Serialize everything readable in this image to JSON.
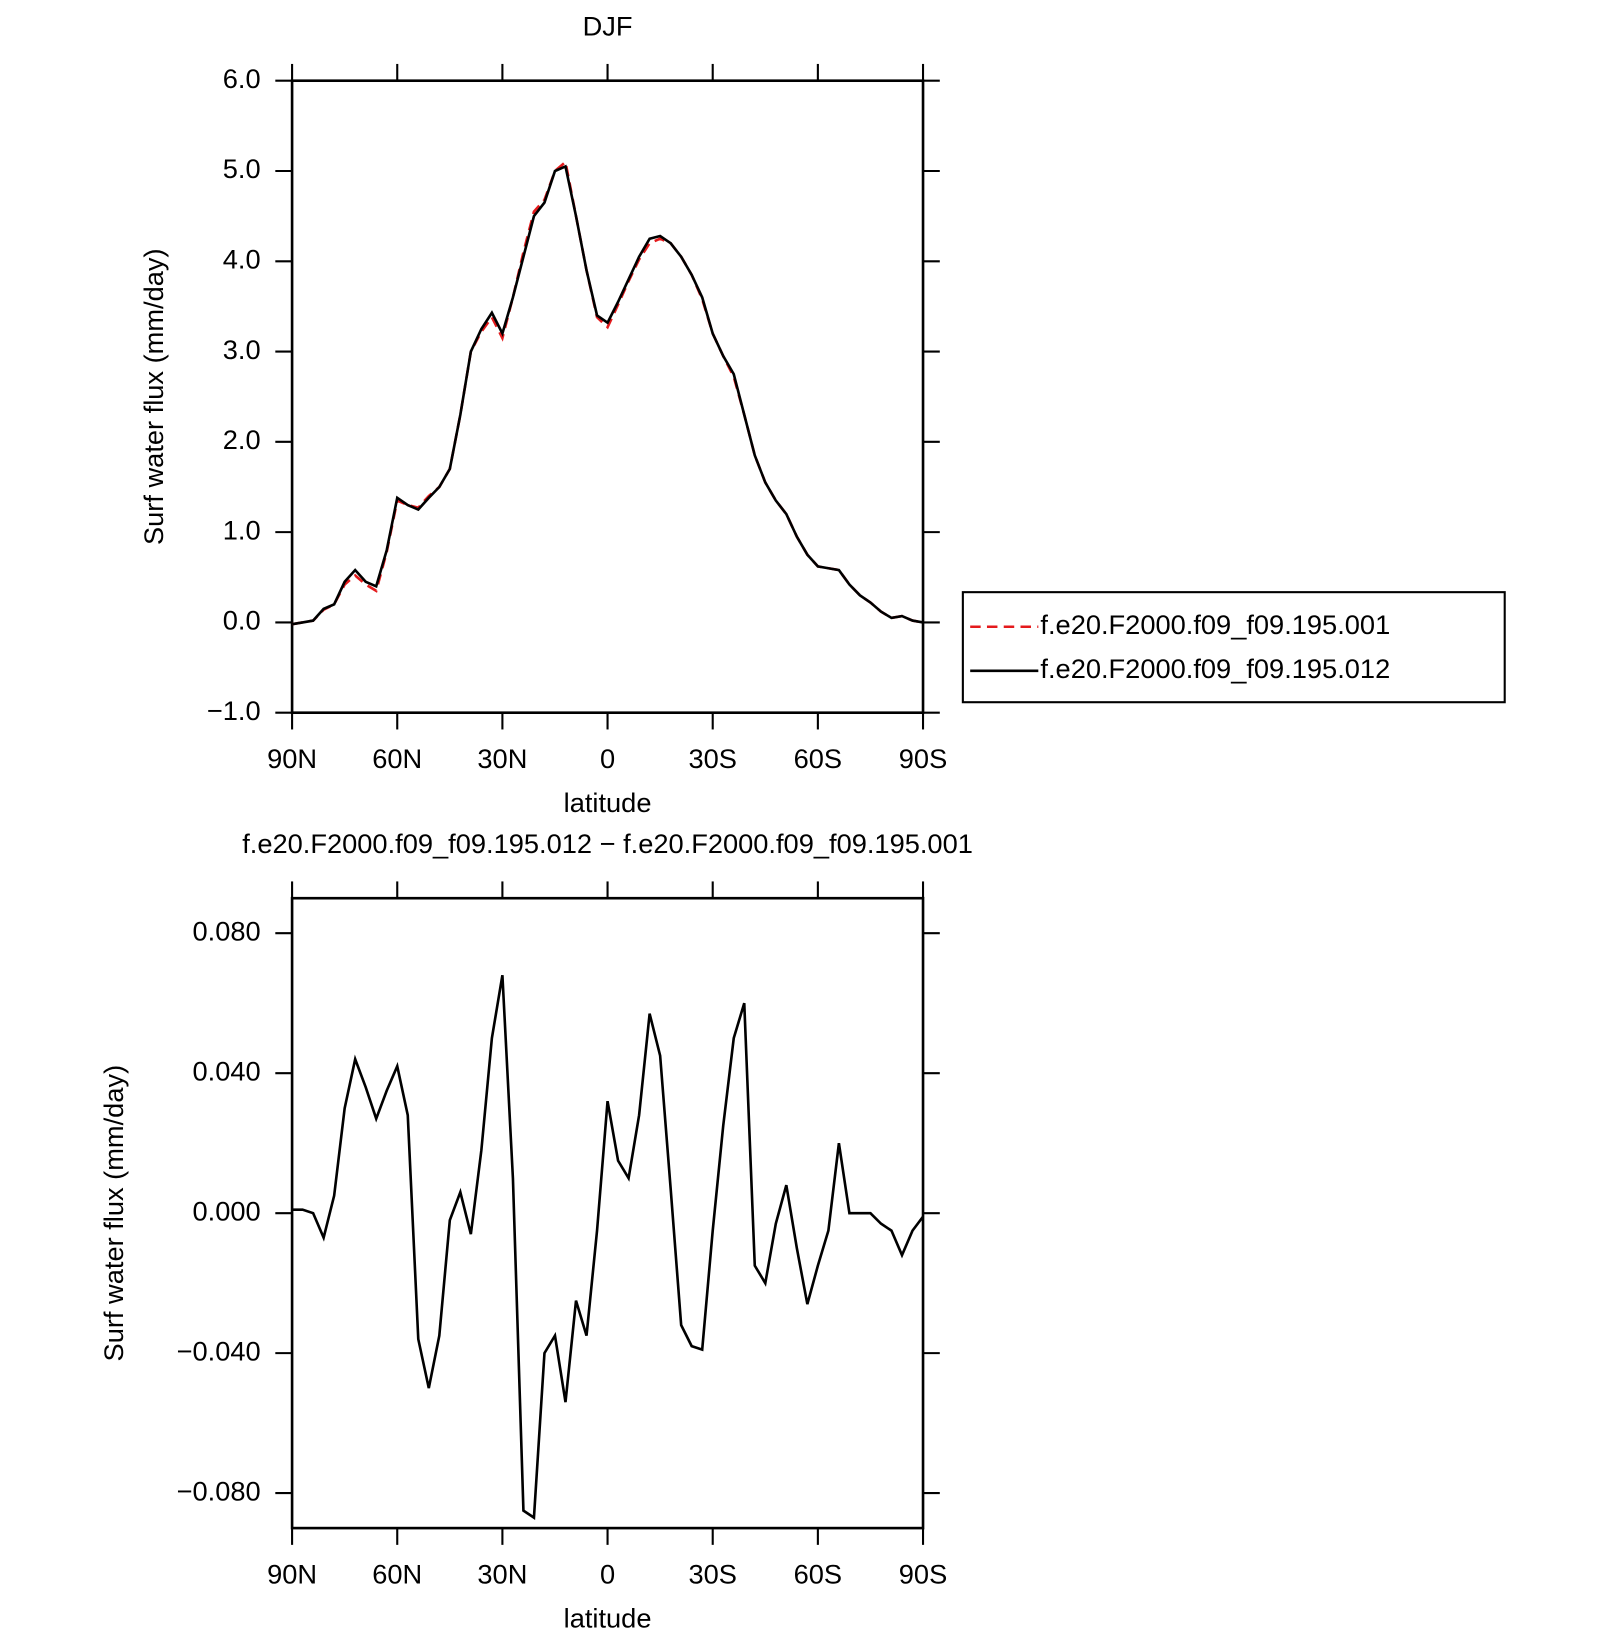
{
  "chart_data": [
    {
      "type": "line",
      "title": "DJF",
      "xlabel": "latitude",
      "ylabel": "Surf water flux (mm/day)",
      "x": [
        90,
        87,
        84,
        81,
        78,
        75,
        72,
        69,
        66,
        63,
        60,
        57,
        54,
        51,
        48,
        45,
        42,
        39,
        36,
        33,
        30,
        27,
        24,
        21,
        18,
        15,
        12,
        9,
        6,
        3,
        0,
        -3,
        -6,
        -9,
        -12,
        -15,
        -18,
        -21,
        -24,
        -27,
        -30,
        -33,
        -36,
        -39,
        -42,
        -45,
        -48,
        -51,
        -54,
        -57,
        -60,
        -63,
        -66,
        -69,
        -72,
        -75,
        -78,
        -81,
        -84,
        -87,
        -90
      ],
      "series": [
        {
          "name": "f.e20.F2000.f09_f09.195.001",
          "color": "#e41a1c",
          "dash": true,
          "values": [
            -0.02,
            0.0,
            0.02,
            0.14,
            0.2,
            0.42,
            0.52,
            0.42,
            0.35,
            0.78,
            1.35,
            1.3,
            1.27,
            1.4,
            1.5,
            1.7,
            2.3,
            3.0,
            3.22,
            3.38,
            3.15,
            3.6,
            4.1,
            4.55,
            4.68,
            5.0,
            5.1,
            4.5,
            3.9,
            3.38,
            3.27,
            3.52,
            3.78,
            4.02,
            4.2,
            4.25,
            4.2,
            4.05,
            3.85,
            3.58,
            3.2,
            2.95,
            2.72,
            2.3,
            1.85,
            1.55,
            1.35,
            1.2,
            0.95,
            0.75,
            0.62,
            0.6,
            0.58,
            0.42,
            0.3,
            0.22,
            0.12,
            0.05,
            0.07,
            0.02,
            0.0
          ]
        },
        {
          "name": "f.e20.F2000.f09_f09.195.012",
          "color": "#000000",
          "dash": false,
          "values": [
            -0.02,
            0.0,
            0.02,
            0.15,
            0.2,
            0.45,
            0.58,
            0.45,
            0.4,
            0.8,
            1.38,
            1.3,
            1.25,
            1.38,
            1.5,
            1.7,
            2.3,
            3.0,
            3.25,
            3.43,
            3.2,
            3.6,
            4.05,
            4.5,
            4.65,
            5.0,
            5.05,
            4.5,
            3.9,
            3.4,
            3.32,
            3.55,
            3.8,
            4.05,
            4.25,
            4.28,
            4.2,
            4.05,
            3.85,
            3.6,
            3.2,
            2.95,
            2.75,
            2.3,
            1.85,
            1.55,
            1.35,
            1.2,
            0.95,
            0.75,
            0.62,
            0.6,
            0.58,
            0.42,
            0.3,
            0.22,
            0.12,
            0.05,
            0.07,
            0.02,
            0.0
          ]
        }
      ],
      "xlim": [
        90,
        -90
      ],
      "xticks": [
        {
          "value": 90,
          "label": "90N"
        },
        {
          "value": 60,
          "label": "60N"
        },
        {
          "value": 30,
          "label": "30N"
        },
        0,
        {
          "value": -30,
          "label": "30S"
        },
        {
          "value": -60,
          "label": "60S"
        },
        {
          "value": -90,
          "label": "90S"
        }
      ],
      "ylim": [
        -1,
        6
      ],
      "yticks": [
        {
          "value": -1,
          "label": "−1.0"
        },
        {
          "value": 0,
          "label": "0.0"
        },
        {
          "value": 1,
          "label": "1.0"
        },
        {
          "value": 2,
          "label": "2.0"
        },
        {
          "value": 3,
          "label": "3.0"
        },
        {
          "value": 4,
          "label": "4.0"
        },
        {
          "value": 5,
          "label": "5.0"
        },
        {
          "value": 6,
          "label": "6.0"
        }
      ],
      "legend": "right"
    },
    {
      "type": "line",
      "title": "f.e20.F2000.f09_f09.195.012 − f.e20.F2000.f09_f09.195.001",
      "xlabel": "latitude",
      "ylabel": "Surf water flux (mm/day)",
      "x": [
        90,
        87,
        84,
        81,
        78,
        75,
        72,
        69,
        66,
        63,
        60,
        57,
        54,
        51,
        48,
        45,
        42,
        39,
        36,
        33,
        30,
        27,
        24,
        21,
        18,
        15,
        12,
        9,
        6,
        3,
        0,
        -3,
        -6,
        -9,
        -12,
        -15,
        -18,
        -21,
        -24,
        -27,
        -30,
        -33,
        -36,
        -39,
        -42,
        -45,
        -48,
        -51,
        -54,
        -57,
        -60,
        -63,
        -66,
        -69,
        -72,
        -75,
        -78,
        -81,
        -84,
        -87,
        -90
      ],
      "series": [
        {
          "color": "#000000",
          "values": [
            0.001,
            0.001,
            0.0,
            -0.007,
            0.005,
            0.03,
            0.044,
            0.036,
            0.027,
            0.035,
            0.042,
            0.028,
            -0.036,
            -0.05,
            -0.035,
            -0.002,
            0.006,
            -0.006,
            0.018,
            0.05,
            0.068,
            0.01,
            -0.085,
            -0.087,
            -0.04,
            -0.035,
            -0.054,
            -0.025,
            -0.035,
            -0.005,
            0.032,
            0.015,
            0.01,
            0.028,
            0.057,
            0.045,
            0.007,
            -0.032,
            -0.038,
            -0.039,
            -0.005,
            0.025,
            0.05,
            0.06,
            -0.015,
            -0.02,
            -0.003,
            0.008,
            -0.01,
            -0.026,
            -0.015,
            -0.005,
            0.02,
            0.0,
            0.0,
            0.0,
            -0.003,
            -0.005,
            -0.012,
            -0.005,
            -0.001
          ]
        }
      ],
      "xlim": [
        90,
        -90
      ],
      "xticks": [
        {
          "value": 90,
          "label": "90N"
        },
        {
          "value": 60,
          "label": "60N"
        },
        {
          "value": 30,
          "label": "30N"
        },
        0,
        {
          "value": -30,
          "label": "30S"
        },
        {
          "value": -60,
          "label": "60S"
        },
        {
          "value": -90,
          "label": "90S"
        }
      ],
      "ylim": [
        -0.09,
        0.09
      ],
      "yticks": [
        {
          "value": -0.08,
          "label": "−0.080"
        },
        {
          "value": -0.04,
          "label": "−0.040"
        },
        {
          "value": 0,
          "label": "0.000"
        },
        {
          "value": 0.04,
          "label": "0.040"
        },
        {
          "value": 0.08,
          "label": "0.080"
        }
      ]
    }
  ]
}
